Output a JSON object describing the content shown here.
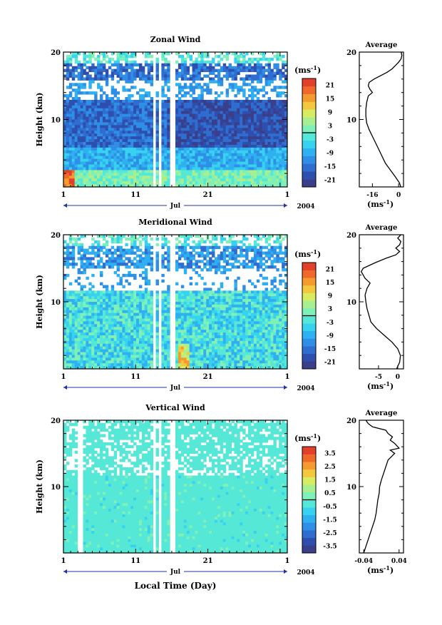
{
  "colors": {
    "scale": [
      "#3a3f8c",
      "#2e4fae",
      "#2f6dd0",
      "#2f8ee6",
      "#2fb0f0",
      "#37d2ef",
      "#56e8d6",
      "#7ef0b8",
      "#a8f08f",
      "#d8ec62",
      "#f4c83e",
      "#f59a2e",
      "#ef6a2a",
      "#e2402a"
    ],
    "background": "#ffffff"
  },
  "chart_data": [
    {
      "type": "heatmap",
      "title": "Zonal Wind",
      "ylabel": "Height (km)",
      "yticks": [
        "20",
        "10"
      ],
      "ylim": [
        0,
        20
      ],
      "xticks": [
        "1",
        "11",
        "21",
        "1"
      ],
      "month_label": "Jul",
      "year_label": "2004",
      "colorbar": {
        "unit": "(ms",
        "unit_sup": "-1",
        "unit_close": ")",
        "labels": [
          "21",
          "15",
          "9",
          "3",
          "-3",
          "-9",
          "-15",
          "-21"
        ]
      },
      "profile": {
        "title": "Average",
        "yticks": [
          "20",
          "10"
        ],
        "xticks": [
          "-16",
          "0"
        ],
        "xlabel": "(ms",
        "xlabel_sup": "-1",
        "xlabel_close": ")",
        "xlim": [
          -24,
          3
        ],
        "points": [
          [
            1.3,
            0
          ],
          [
            0.5,
            0.6
          ],
          [
            -2,
            1.5
          ],
          [
            -5,
            2.5
          ],
          [
            -8,
            3.5
          ],
          [
            -10,
            4.5
          ],
          [
            -12,
            5.5
          ],
          [
            -14,
            6.5
          ],
          [
            -16,
            7.5
          ],
          [
            -18,
            8.5
          ],
          [
            -19.5,
            9.5
          ],
          [
            -20,
            10.5
          ],
          [
            -20,
            11.5
          ],
          [
            -19.5,
            12.5
          ],
          [
            -18.5,
            13.5
          ],
          [
            -16,
            14
          ],
          [
            -17.5,
            14.5
          ],
          [
            -18.5,
            15
          ],
          [
            -18,
            15.5
          ],
          [
            -15,
            16
          ],
          [
            -11,
            16.5
          ],
          [
            -7,
            17
          ],
          [
            -4,
            17.5
          ],
          [
            -2,
            18
          ],
          [
            0,
            18.5
          ],
          [
            1.5,
            19
          ],
          [
            2,
            19.5
          ],
          [
            1.6,
            20
          ]
        ]
      }
    },
    {
      "type": "heatmap",
      "title": "Meridional Wind",
      "ylabel": "Height (km)",
      "yticks": [
        "20",
        "10"
      ],
      "ylim": [
        0,
        20
      ],
      "xticks": [
        "1",
        "11",
        "21",
        "1"
      ],
      "month_label": "Jul",
      "year_label": "2004",
      "colorbar": {
        "unit": "(ms",
        "unit_sup": "-1",
        "unit_close": ")",
        "labels": [
          "21",
          "15",
          "9",
          "3",
          "-3",
          "-9",
          "-15",
          "-21"
        ]
      },
      "profile": {
        "title": "Average",
        "yticks": [
          "20",
          "10"
        ],
        "xticks": [
          "-5",
          "0"
        ],
        "xlabel": "(ms",
        "xlabel_sup": "-1",
        "xlabel_close": ")",
        "xlim": [
          -10,
          1.5
        ],
        "points": [
          [
            -0.3,
            0
          ],
          [
            0.5,
            1
          ],
          [
            0.7,
            2
          ],
          [
            0,
            3
          ],
          [
            -1.5,
            4
          ],
          [
            -3.5,
            5
          ],
          [
            -5.5,
            6
          ],
          [
            -7,
            7
          ],
          [
            -7.5,
            8
          ],
          [
            -8,
            9
          ],
          [
            -8.3,
            10
          ],
          [
            -8.5,
            11
          ],
          [
            -8,
            12
          ],
          [
            -7.2,
            12.8
          ],
          [
            -8.5,
            13.5
          ],
          [
            -9.5,
            14.5
          ],
          [
            -9,
            15
          ],
          [
            -6,
            15.8
          ],
          [
            -3,
            16.5
          ],
          [
            -0.5,
            17
          ],
          [
            0.5,
            17.5
          ],
          [
            -0.5,
            18
          ],
          [
            0.5,
            18.5
          ],
          [
            0.8,
            19
          ],
          [
            0,
            19.5
          ],
          [
            0.8,
            20
          ]
        ]
      }
    },
    {
      "type": "heatmap",
      "title": "Vertical Wind",
      "ylabel": "Height (km)",
      "xlabel": "Local Time (Day)",
      "yticks": [
        "20",
        "10"
      ],
      "ylim": [
        0,
        20
      ],
      "xticks": [
        "1",
        "11",
        "21",
        "1"
      ],
      "month_label": "Jul",
      "year_label": "2004",
      "colorbar": {
        "unit": "(ms",
        "unit_sup": "-1",
        "unit_close": ")",
        "labels": [
          "3.5",
          "2.5",
          "1.5",
          "0.5",
          "-0.5",
          "-1.5",
          "-2.5",
          "-3.5"
        ]
      },
      "profile": {
        "title": "Average",
        "yticks": [
          "20",
          "10"
        ],
        "xticks": [
          "-0.04",
          "0.04"
        ],
        "xlabel": "(ms",
        "xlabel_sup": "-1",
        "xlabel_close": ")",
        "xlim": [
          -0.05,
          0.05
        ],
        "points": [
          [
            -0.04,
            0
          ],
          [
            -0.035,
            1
          ],
          [
            -0.03,
            2
          ],
          [
            -0.025,
            3
          ],
          [
            -0.02,
            4
          ],
          [
            -0.015,
            5
          ],
          [
            -0.012,
            6
          ],
          [
            -0.01,
            7
          ],
          [
            -0.008,
            8
          ],
          [
            -0.005,
            9
          ],
          [
            -0.004,
            10
          ],
          [
            0.0,
            11
          ],
          [
            0.005,
            12
          ],
          [
            0.01,
            13
          ],
          [
            0.015,
            14
          ],
          [
            0.03,
            15
          ],
          [
            0.02,
            15.5
          ],
          [
            0.04,
            15.8
          ],
          [
            0.03,
            16.5
          ],
          [
            0.02,
            17
          ],
          [
            0.025,
            17.5
          ],
          [
            0.015,
            18
          ],
          [
            0.01,
            18.5
          ],
          [
            -0.02,
            19
          ],
          [
            -0.03,
            19.5
          ],
          [
            -0.035,
            20
          ]
        ]
      }
    }
  ]
}
